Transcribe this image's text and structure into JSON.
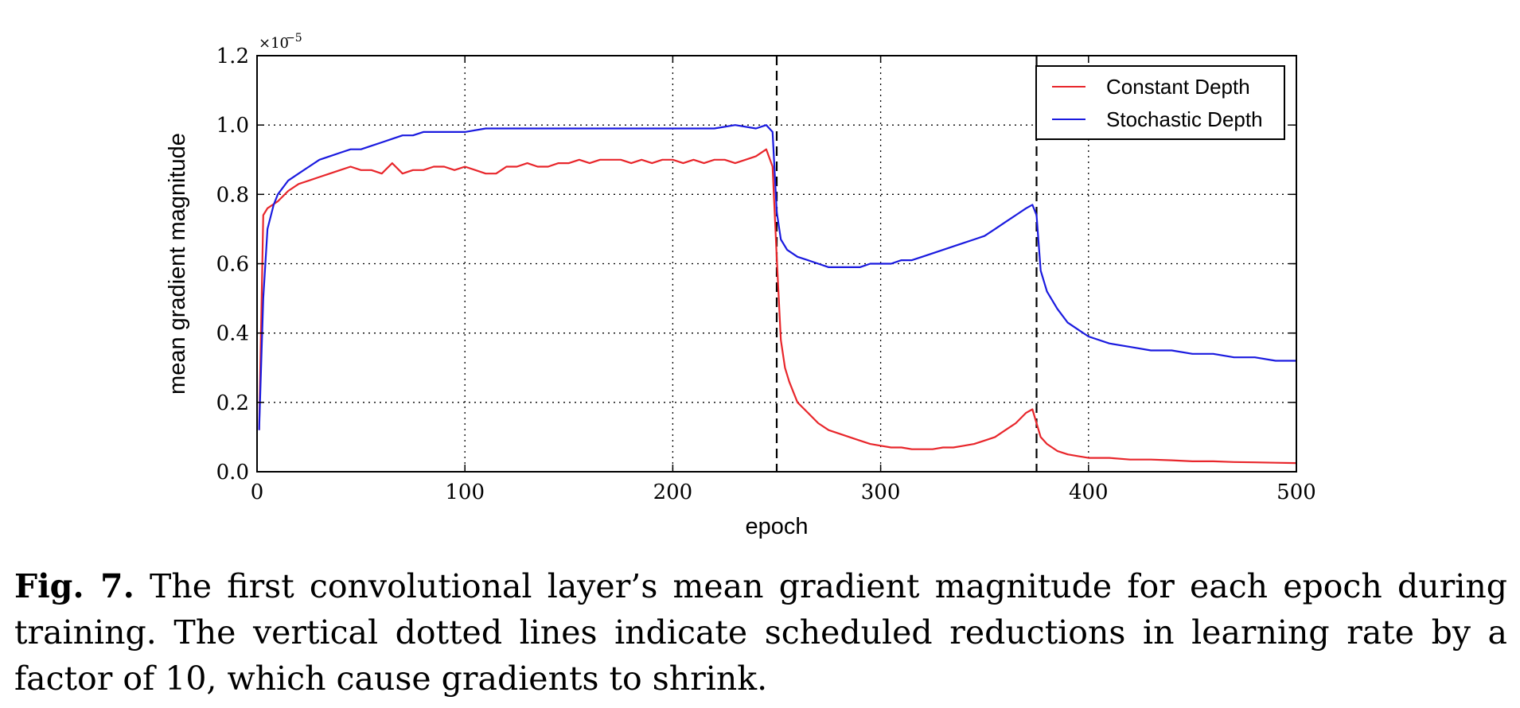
{
  "chart_data": {
    "type": "line",
    "title": "",
    "xlabel": "epoch",
    "ylabel": "mean gradient magnitude",
    "y_scale_label": "×10",
    "y_scale_exponent": "−5",
    "xlim": [
      0,
      500
    ],
    "ylim": [
      0.0,
      1.2
    ],
    "x_ticks": [
      0,
      100,
      200,
      300,
      400,
      500
    ],
    "y_ticks": [
      0.0,
      0.2,
      0.4,
      0.6,
      0.8,
      1.0,
      1.2
    ],
    "x_tick_labels": [
      "0",
      "100",
      "200",
      "300",
      "400",
      "500"
    ],
    "y_tick_labels": [
      "0.0",
      "0.2",
      "0.4",
      "0.6",
      "0.8",
      "1.0",
      "1.2"
    ],
    "grid": true,
    "legend_position": "top-right",
    "vlines": [
      250,
      375
    ],
    "series": [
      {
        "name": "Constant Depth",
        "color": "#e8262b",
        "points": [
          [
            1,
            0.12
          ],
          [
            3,
            0.74
          ],
          [
            5,
            0.76
          ],
          [
            10,
            0.78
          ],
          [
            15,
            0.81
          ],
          [
            20,
            0.83
          ],
          [
            25,
            0.84
          ],
          [
            30,
            0.85
          ],
          [
            35,
            0.86
          ],
          [
            40,
            0.87
          ],
          [
            45,
            0.88
          ],
          [
            50,
            0.87
          ],
          [
            55,
            0.87
          ],
          [
            60,
            0.86
          ],
          [
            65,
            0.89
          ],
          [
            70,
            0.86
          ],
          [
            75,
            0.87
          ],
          [
            80,
            0.87
          ],
          [
            85,
            0.88
          ],
          [
            90,
            0.88
          ],
          [
            95,
            0.87
          ],
          [
            100,
            0.88
          ],
          [
            105,
            0.87
          ],
          [
            110,
            0.86
          ],
          [
            115,
            0.86
          ],
          [
            120,
            0.88
          ],
          [
            125,
            0.88
          ],
          [
            130,
            0.89
          ],
          [
            135,
            0.88
          ],
          [
            140,
            0.88
          ],
          [
            145,
            0.89
          ],
          [
            150,
            0.89
          ],
          [
            155,
            0.9
          ],
          [
            160,
            0.89
          ],
          [
            165,
            0.9
          ],
          [
            170,
            0.9
          ],
          [
            175,
            0.9
          ],
          [
            180,
            0.89
          ],
          [
            185,
            0.9
          ],
          [
            190,
            0.89
          ],
          [
            195,
            0.9
          ],
          [
            200,
            0.9
          ],
          [
            205,
            0.89
          ],
          [
            210,
            0.9
          ],
          [
            215,
            0.89
          ],
          [
            220,
            0.9
          ],
          [
            225,
            0.9
          ],
          [
            230,
            0.89
          ],
          [
            235,
            0.9
          ],
          [
            240,
            0.91
          ],
          [
            245,
            0.93
          ],
          [
            248,
            0.88
          ],
          [
            250,
            0.62
          ],
          [
            252,
            0.38
          ],
          [
            254,
            0.3
          ],
          [
            256,
            0.26
          ],
          [
            258,
            0.23
          ],
          [
            260,
            0.2
          ],
          [
            265,
            0.17
          ],
          [
            270,
            0.14
          ],
          [
            275,
            0.12
          ],
          [
            280,
            0.11
          ],
          [
            285,
            0.1
          ],
          [
            290,
            0.09
          ],
          [
            295,
            0.08
          ],
          [
            300,
            0.075
          ],
          [
            305,
            0.07
          ],
          [
            310,
            0.07
          ],
          [
            315,
            0.065
          ],
          [
            320,
            0.065
          ],
          [
            325,
            0.065
          ],
          [
            330,
            0.07
          ],
          [
            335,
            0.07
          ],
          [
            340,
            0.075
          ],
          [
            345,
            0.08
          ],
          [
            350,
            0.09
          ],
          [
            355,
            0.1
          ],
          [
            360,
            0.12
          ],
          [
            365,
            0.14
          ],
          [
            370,
            0.17
          ],
          [
            373,
            0.18
          ],
          [
            375,
            0.14
          ],
          [
            377,
            0.1
          ],
          [
            380,
            0.08
          ],
          [
            385,
            0.06
          ],
          [
            390,
            0.05
          ],
          [
            395,
            0.045
          ],
          [
            400,
            0.04
          ],
          [
            410,
            0.04
          ],
          [
            420,
            0.035
          ],
          [
            430,
            0.035
          ],
          [
            440,
            0.033
          ],
          [
            450,
            0.03
          ],
          [
            460,
            0.03
          ],
          [
            470,
            0.028
          ],
          [
            480,
            0.027
          ],
          [
            490,
            0.026
          ],
          [
            500,
            0.025
          ]
        ]
      },
      {
        "name": "Stochastic Depth",
        "color": "#1a1adf",
        "points": [
          [
            1,
            0.12
          ],
          [
            3,
            0.5
          ],
          [
            5,
            0.7
          ],
          [
            8,
            0.77
          ],
          [
            10,
            0.8
          ],
          [
            15,
            0.84
          ],
          [
            20,
            0.86
          ],
          [
            25,
            0.88
          ],
          [
            30,
            0.9
          ],
          [
            35,
            0.91
          ],
          [
            40,
            0.92
          ],
          [
            45,
            0.93
          ],
          [
            50,
            0.93
          ],
          [
            55,
            0.94
          ],
          [
            60,
            0.95
          ],
          [
            65,
            0.96
          ],
          [
            70,
            0.97
          ],
          [
            75,
            0.97
          ],
          [
            80,
            0.98
          ],
          [
            85,
            0.98
          ],
          [
            90,
            0.98
          ],
          [
            95,
            0.98
          ],
          [
            100,
            0.98
          ],
          [
            110,
            0.99
          ],
          [
            120,
            0.99
          ],
          [
            130,
            0.99
          ],
          [
            140,
            0.99
          ],
          [
            150,
            0.99
          ],
          [
            160,
            0.99
          ],
          [
            170,
            0.99
          ],
          [
            180,
            0.99
          ],
          [
            190,
            0.99
          ],
          [
            200,
            0.99
          ],
          [
            210,
            0.99
          ],
          [
            220,
            0.99
          ],
          [
            230,
            1.0
          ],
          [
            240,
            0.99
          ],
          [
            245,
            1.0
          ],
          [
            248,
            0.98
          ],
          [
            250,
            0.75
          ],
          [
            252,
            0.67
          ],
          [
            255,
            0.64
          ],
          [
            260,
            0.62
          ],
          [
            265,
            0.61
          ],
          [
            270,
            0.6
          ],
          [
            275,
            0.59
          ],
          [
            280,
            0.59
          ],
          [
            285,
            0.59
          ],
          [
            290,
            0.59
          ],
          [
            295,
            0.6
          ],
          [
            300,
            0.6
          ],
          [
            305,
            0.6
          ],
          [
            310,
            0.61
          ],
          [
            315,
            0.61
          ],
          [
            320,
            0.62
          ],
          [
            325,
            0.63
          ],
          [
            330,
            0.64
          ],
          [
            335,
            0.65
          ],
          [
            340,
            0.66
          ],
          [
            345,
            0.67
          ],
          [
            350,
            0.68
          ],
          [
            355,
            0.7
          ],
          [
            360,
            0.72
          ],
          [
            365,
            0.74
          ],
          [
            370,
            0.76
          ],
          [
            373,
            0.77
          ],
          [
            375,
            0.74
          ],
          [
            377,
            0.58
          ],
          [
            380,
            0.52
          ],
          [
            385,
            0.47
          ],
          [
            390,
            0.43
          ],
          [
            395,
            0.41
          ],
          [
            400,
            0.39
          ],
          [
            410,
            0.37
          ],
          [
            420,
            0.36
          ],
          [
            430,
            0.35
          ],
          [
            440,
            0.35
          ],
          [
            450,
            0.34
          ],
          [
            460,
            0.34
          ],
          [
            470,
            0.33
          ],
          [
            480,
            0.33
          ],
          [
            490,
            0.32
          ],
          [
            500,
            0.32
          ]
        ]
      }
    ]
  },
  "caption": {
    "label": "Fig. 7.",
    "text": " The first convolutional layer’s mean gradient magnitude for each epoch during training. The vertical dotted lines indicate scheduled reductions in learning rate by a factor of 10, which cause gradients to shrink."
  }
}
